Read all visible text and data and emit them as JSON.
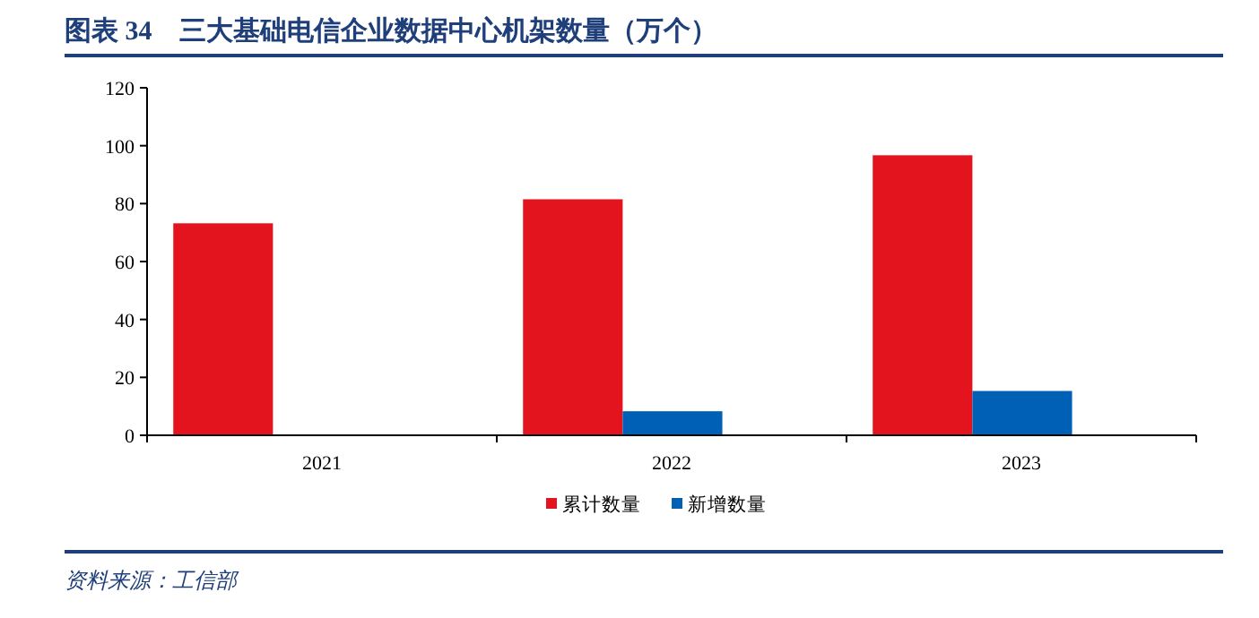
{
  "chart_data": {
    "type": "bar",
    "title": "图表 34　三大基础电信企业数据中心机架数量（万个）",
    "categories": [
      "2021",
      "2022",
      "2023"
    ],
    "series": [
      {
        "name": "累计数量",
        "color": "#e3141d",
        "values": [
          73.2,
          81.5,
          96.7
        ]
      },
      {
        "name": "新增数量",
        "color": "#0060b6",
        "values": [
          null,
          8.3,
          15.3
        ]
      }
    ],
    "ylim": [
      0,
      120
    ],
    "yticks": [
      0,
      20,
      40,
      60,
      80,
      100,
      120
    ],
    "grid": false,
    "legend": "bottom",
    "annotations": [
      "资料来源：工信部"
    ]
  }
}
